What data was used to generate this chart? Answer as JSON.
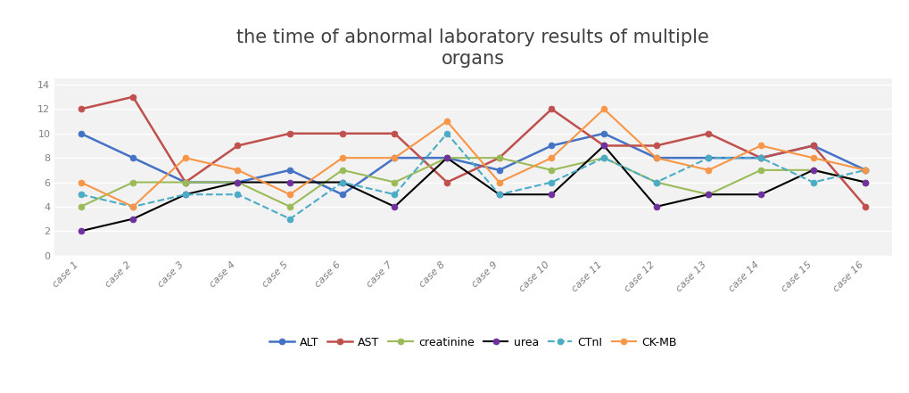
{
  "title": "the time of abnormal laboratory results of multiple\norgans",
  "categories": [
    "case 1",
    "case 2",
    "case 3",
    "case 4",
    "case 5",
    "case 6",
    "case 7",
    "case 8",
    "case 9",
    "case 10",
    "case 11",
    "case 12",
    "case 13",
    "case 14",
    "case 15",
    "case 16"
  ],
  "series_order": [
    "ALT",
    "AST",
    "creatinine",
    "urea",
    "CTnI",
    "CK-MB"
  ],
  "series": {
    "ALT": {
      "values": [
        10,
        8,
        6,
        6,
        7,
        5,
        8,
        8,
        7,
        9,
        10,
        8,
        8,
        8,
        9,
        7
      ],
      "color": "#4472C4",
      "marker": "o",
      "linestyle": "-",
      "linewidth": 1.8,
      "line_color": "#4472C4"
    },
    "AST": {
      "values": [
        12,
        13,
        6,
        9,
        10,
        10,
        10,
        6,
        8,
        12,
        9,
        9,
        10,
        8,
        9,
        4
      ],
      "color": "#C0504D",
      "marker": "o",
      "linestyle": "-",
      "linewidth": 1.8,
      "line_color": "#C0504D"
    },
    "creatinine": {
      "values": [
        4,
        6,
        6,
        6,
        4,
        7,
        6,
        8,
        8,
        7,
        8,
        6,
        5,
        7,
        7,
        6
      ],
      "color": "#9BBB59",
      "marker": "o",
      "linestyle": "-",
      "linewidth": 1.5,
      "line_color": "#9BBB59"
    },
    "urea": {
      "values": [
        2,
        3,
        5,
        6,
        6,
        6,
        4,
        8,
        5,
        5,
        9,
        4,
        5,
        5,
        7,
        6
      ],
      "color": "#7030A0",
      "marker": "o",
      "linestyle": "-",
      "linewidth": 1.5,
      "line_color": "#000000"
    },
    "CTnI": {
      "values": [
        5,
        4,
        5,
        5,
        3,
        6,
        5,
        10,
        5,
        6,
        8,
        6,
        8,
        8,
        6,
        7
      ],
      "color": "#4BACC6",
      "marker": "o",
      "linestyle": "--",
      "linewidth": 1.5,
      "line_color": "#4BACC6"
    },
    "CK-MB": {
      "values": [
        6,
        4,
        8,
        7,
        5,
        8,
        8,
        11,
        6,
        8,
        12,
        8,
        7,
        9,
        8,
        7
      ],
      "color": "#F79646",
      "marker": "o",
      "linestyle": "-",
      "linewidth": 1.5,
      "line_color": "#F79646"
    }
  },
  "ylim": [
    0,
    14.5
  ],
  "yticks": [
    0,
    2,
    4,
    6,
    8,
    10,
    12,
    14
  ],
  "background_color": "#FFFFFF",
  "plot_bg_color": "#F2F2F2",
  "grid_color": "#FFFFFF",
  "title_fontsize": 15,
  "tick_fontsize": 8,
  "legend_fontsize": 9,
  "marker_size": 5
}
